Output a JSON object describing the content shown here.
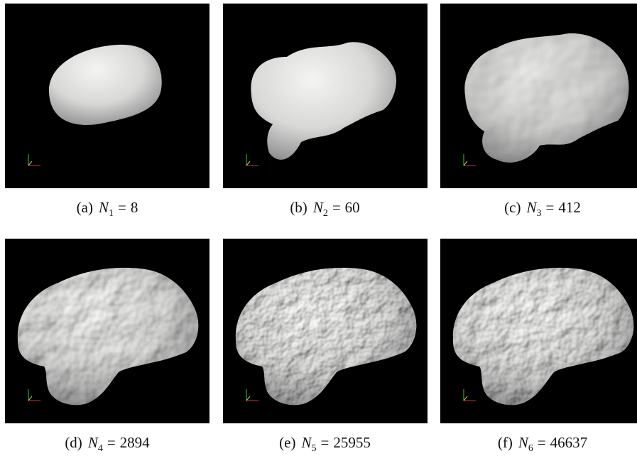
{
  "figure": {
    "relation": "=",
    "panels": [
      {
        "tag": "(a)",
        "symbol": "N",
        "index": "1",
        "value": 8
      },
      {
        "tag": "(b)",
        "symbol": "N",
        "index": "2",
        "value": 60
      },
      {
        "tag": "(c)",
        "symbol": "N",
        "index": "3",
        "value": 412
      },
      {
        "tag": "(d)",
        "symbol": "N",
        "index": "4",
        "value": 2894
      },
      {
        "tag": "(e)",
        "symbol": "N",
        "index": "5",
        "value": 25955
      },
      {
        "tag": "(f)",
        "symbol": "N",
        "index": "6",
        "value": 46637
      }
    ]
  }
}
